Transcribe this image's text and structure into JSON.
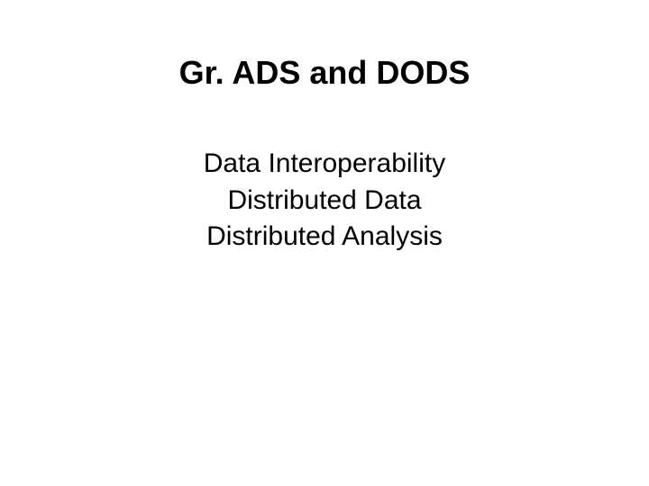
{
  "slide": {
    "title": "Gr. ADS and DODS",
    "lines": {
      "line1": "Data Interoperability",
      "line2": "Distributed Data",
      "line3": "Distributed Analysis"
    },
    "background_color": "#ffffff",
    "text_color": "#000000",
    "title_fontsize": 36,
    "body_fontsize": 30,
    "font_family": "Arial"
  }
}
